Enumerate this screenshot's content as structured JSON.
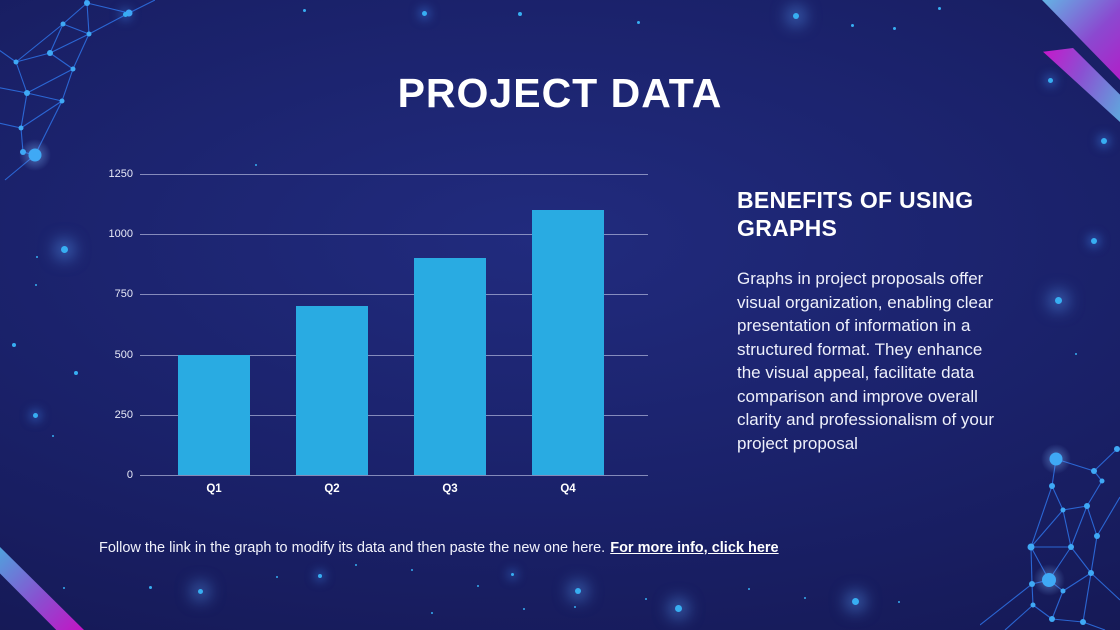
{
  "slide": {
    "title": "PROJECT DATA"
  },
  "benefits": {
    "heading": "BENEFITS OF USING GRAPHS",
    "body": "Graphs in project proposals offer visual organization, enabling clear presentation of information in a structured format. They enhance the visual appeal, facilitate data comparison and improve overall clarity and professionalism of your project proposal"
  },
  "footer": {
    "text": "Follow the link in the graph to modify its data and then paste the new one here.",
    "link_label": "For more info, click here"
  },
  "chart_data": {
    "type": "bar",
    "categories": [
      "Q1",
      "Q2",
      "Q3",
      "Q4"
    ],
    "values": [
      500,
      700,
      900,
      1100
    ],
    "title": "",
    "xlabel": "",
    "ylabel": "",
    "ylim": [
      0,
      1250
    ],
    "yticks": [
      0,
      250,
      500,
      750,
      1000,
      1250
    ],
    "grid": true,
    "legend": false,
    "bar_color": "#29ABE2",
    "gridline_color": "rgba(203,209,238,0.6)",
    "tick_label_color": "#E8EAF8"
  },
  "colors": {
    "background_center": "#1E2678",
    "background_edge": "#121548",
    "accent_cyan": "#29ABE2",
    "stripe_blue": "#56AADF",
    "stripe_magenta": "#C414C4",
    "text_white": "#FFFFFF"
  }
}
